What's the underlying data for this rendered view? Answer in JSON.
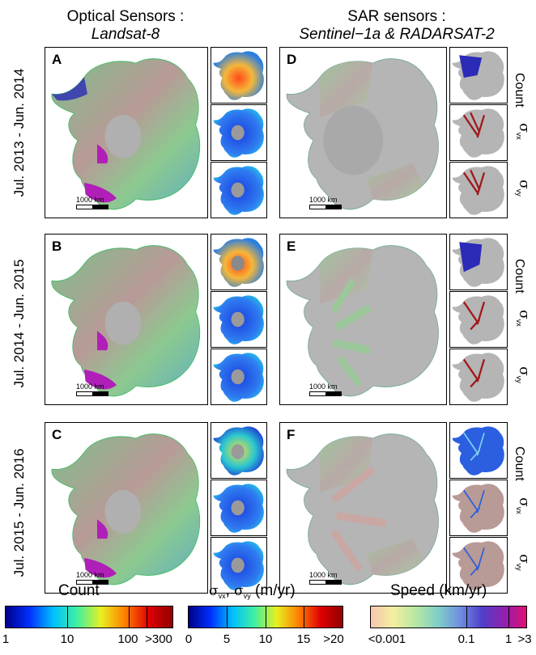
{
  "columns": {
    "optical": {
      "title": "Optical Sensors :",
      "subtitle": "Landsat-8"
    },
    "sar": {
      "title": "SAR sensors :",
      "subtitle": "Sentinel−1a & RADARSAT-2"
    }
  },
  "rows": [
    {
      "period": "Jul. 2013 - Jun. 2014",
      "optical_letter": "A",
      "sar_letter": "D"
    },
    {
      "period": "Jul. 2014 - Jun. 2015",
      "optical_letter": "B",
      "sar_letter": "E"
    },
    {
      "period": "Jul. 2015 - Jun. 2016",
      "optical_letter": "C",
      "sar_letter": "F"
    }
  ],
  "scale_label": "1000 km",
  "side_labels": {
    "count": "Count",
    "sigma_x": "σ",
    "sigma_x_sub": "vx",
    "sigma_y": "σ",
    "sigma_y_sub": "vy"
  },
  "colorbars": {
    "count": {
      "title": "Count",
      "ticks": [
        "1",
        "10",
        "100",
        ">300"
      ]
    },
    "sigma": {
      "title_sym": "σ",
      "title_sub1": "vx",
      "title_sep": ", ",
      "title_sub2": "vy",
      "title_unit": " (m/yr)",
      "ticks": [
        "0",
        "5",
        "10",
        "15",
        ">20"
      ]
    },
    "speed": {
      "title": "Speed (km/yr)",
      "ticks": [
        "<0.001",
        "0.1",
        "1",
        ">3"
      ]
    }
  },
  "colors": {
    "ice_gray": "#a9a9a9",
    "speed_green": "#8fc88a",
    "speed_pink": "#c9a7a3",
    "fast_blue": "#2b2bb8",
    "fast_magenta": "#b01fb8",
    "count_blue": "#1b2fd6",
    "count_red": "#e3321c",
    "count_yellow": "#f0d43a"
  }
}
